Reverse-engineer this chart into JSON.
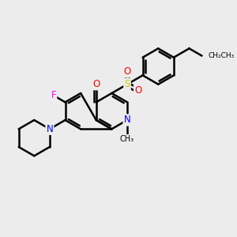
{
  "background_color": "#ececec",
  "bond_color": "#000000",
  "bond_width": 1.8,
  "atom_colors": {
    "O": "#ff0000",
    "N": "#0000ff",
    "F": "#ff00ff",
    "S": "#cccc00",
    "C": "#000000"
  },
  "font_size": 8.5,
  "figsize": [
    3.0,
    3.0
  ],
  "dpi": 100,
  "xlim": [
    0.0,
    10.0
  ],
  "ylim": [
    0.5,
    10.0
  ]
}
